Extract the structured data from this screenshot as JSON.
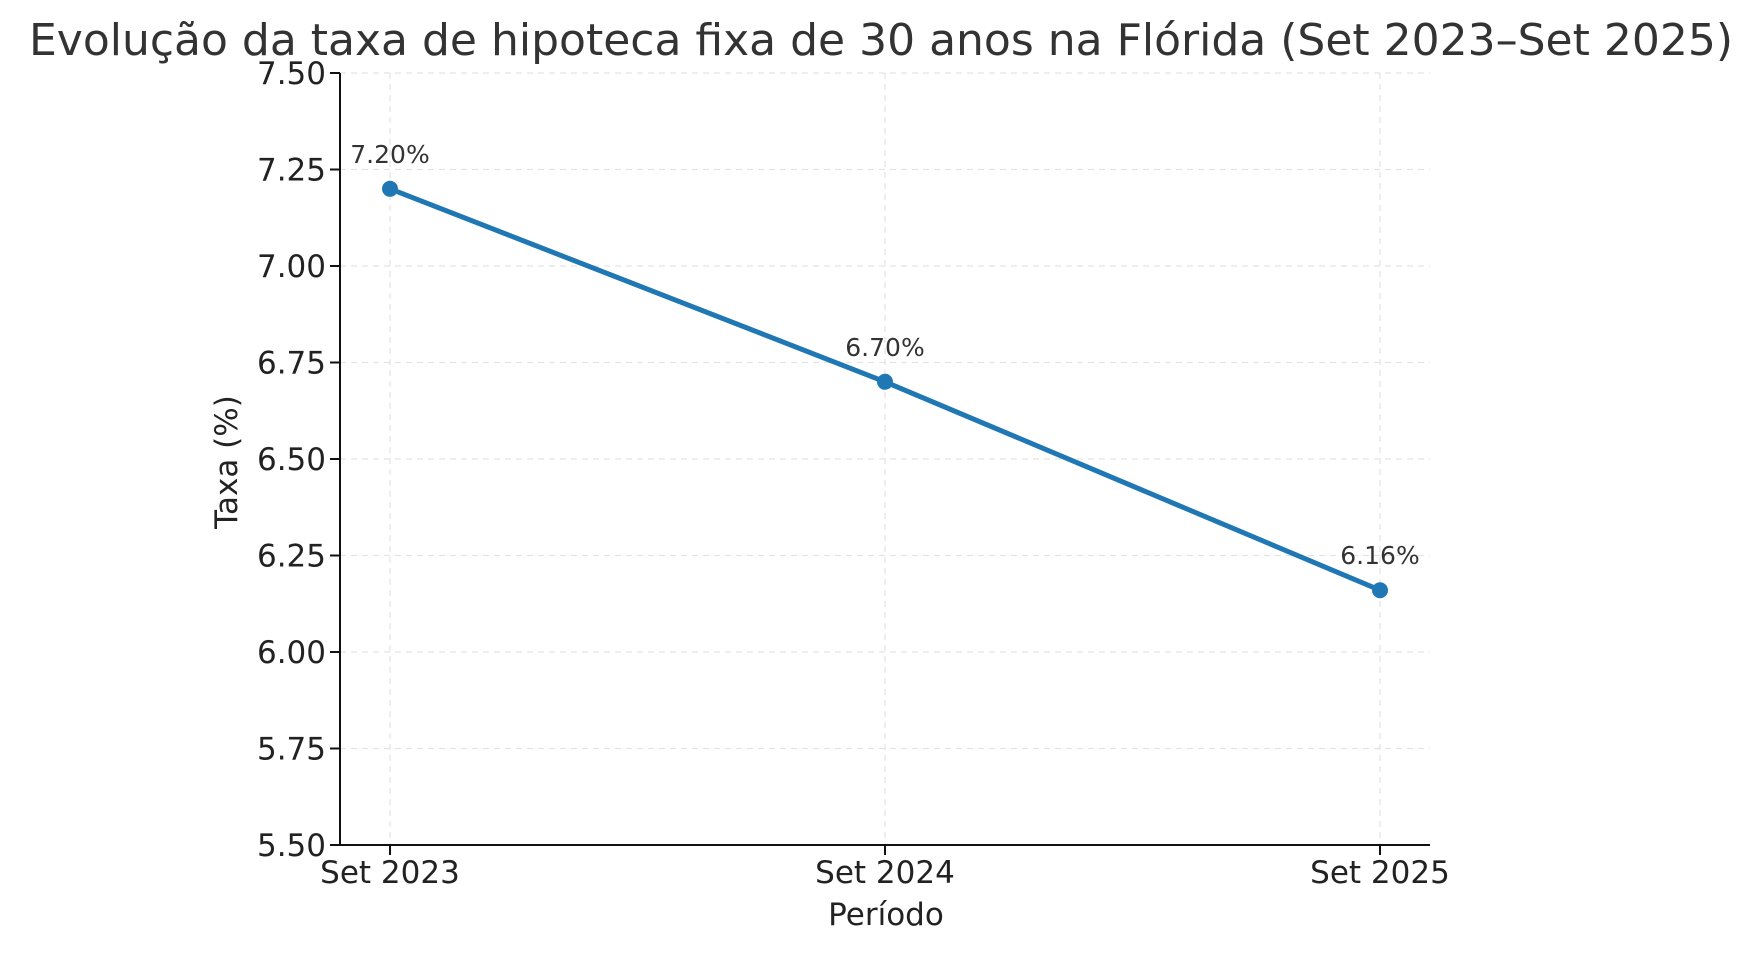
{
  "chart_data": {
    "type": "line",
    "title": "Evolução da taxa de hipoteca fixa de 30 anos na Flórida (Set 2023–Set 2025)",
    "xlabel": "Período",
    "ylabel": "Taxa (%)",
    "categories": [
      "Set 2023",
      "Set 2024",
      "Set 2025"
    ],
    "series": [
      {
        "values": [
          7.2,
          6.7,
          6.16
        ],
        "data_labels": [
          "7.20%",
          "6.70%",
          "6.16%"
        ],
        "color": "#1f77b4",
        "marker": "circle"
      }
    ],
    "ylim": [
      5.5,
      7.5
    ],
    "yticks": [
      5.5,
      5.75,
      6.0,
      6.25,
      6.5,
      6.75,
      7.0,
      7.25,
      7.5
    ],
    "ytick_labels": [
      "5.50",
      "5.75",
      "6.00",
      "6.25",
      "6.50",
      "6.75",
      "7.00",
      "7.25",
      "7.50"
    ],
    "grid": true,
    "colors": {
      "line": "#1f77b4",
      "grid": "#e3e3e3",
      "text": "#222222"
    }
  }
}
